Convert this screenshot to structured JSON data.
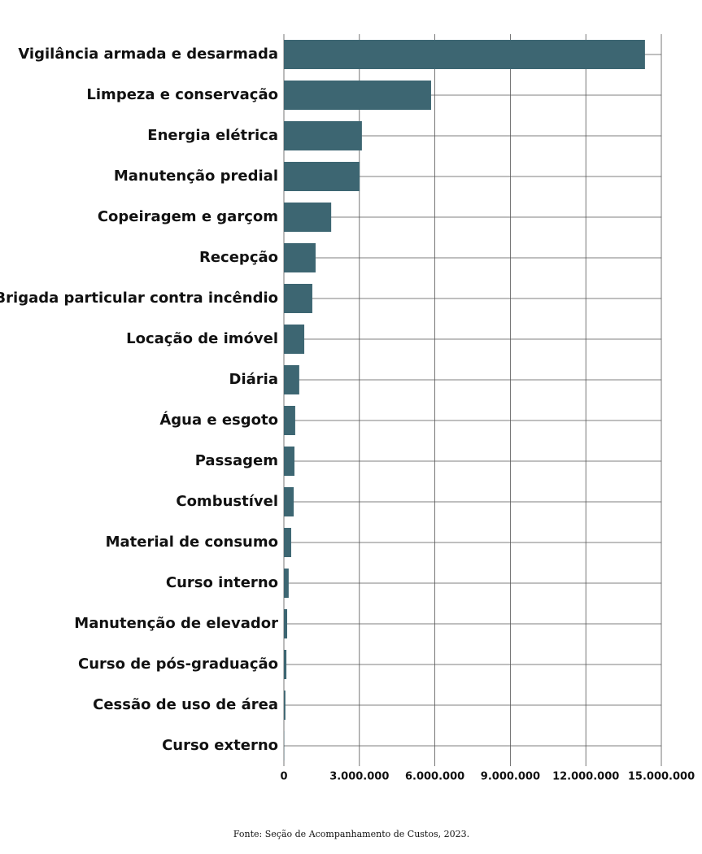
{
  "chart_data": {
    "type": "bar",
    "orientation": "horizontal",
    "categories": [
      "Vigilância armada e desarmada",
      "Limpeza e conservação",
      "Energia elétrica",
      "Manutenção predial",
      "Copeiragem e garçom",
      "Recepção",
      "Brigada particular contra incêndio",
      "Locação de imóvel",
      "Diária",
      "Água e esgoto",
      "Passagem",
      "Combustível",
      "Material de consumo",
      "Curso interno",
      "Manutenção de elevador",
      "Curso de pós-graduação",
      "Cessão de uso de área",
      "Curso externo"
    ],
    "values": [
      14350000,
      5850000,
      3100000,
      3010000,
      1880000,
      1260000,
      1130000,
      810000,
      610000,
      450000,
      420000,
      390000,
      290000,
      190000,
      130000,
      100000,
      60000,
      10000
    ],
    "color": "#3d6672",
    "xlim": [
      0,
      15000000
    ],
    "xticks": [
      0,
      {
        "value": 3000000,
        "label": "3.000.000"
      },
      {
        "value": 6000000,
        "label": "6.000.000"
      },
      {
        "value": 9000000,
        "label": "9.000.000"
      },
      {
        "value": 12000000,
        "label": "12.000.000"
      },
      {
        "value": 15000000,
        "label": "15.000.000"
      }
    ],
    "grid": true,
    "source": "Fonte: Seção de Acompanhamento de Custos, 2023."
  }
}
